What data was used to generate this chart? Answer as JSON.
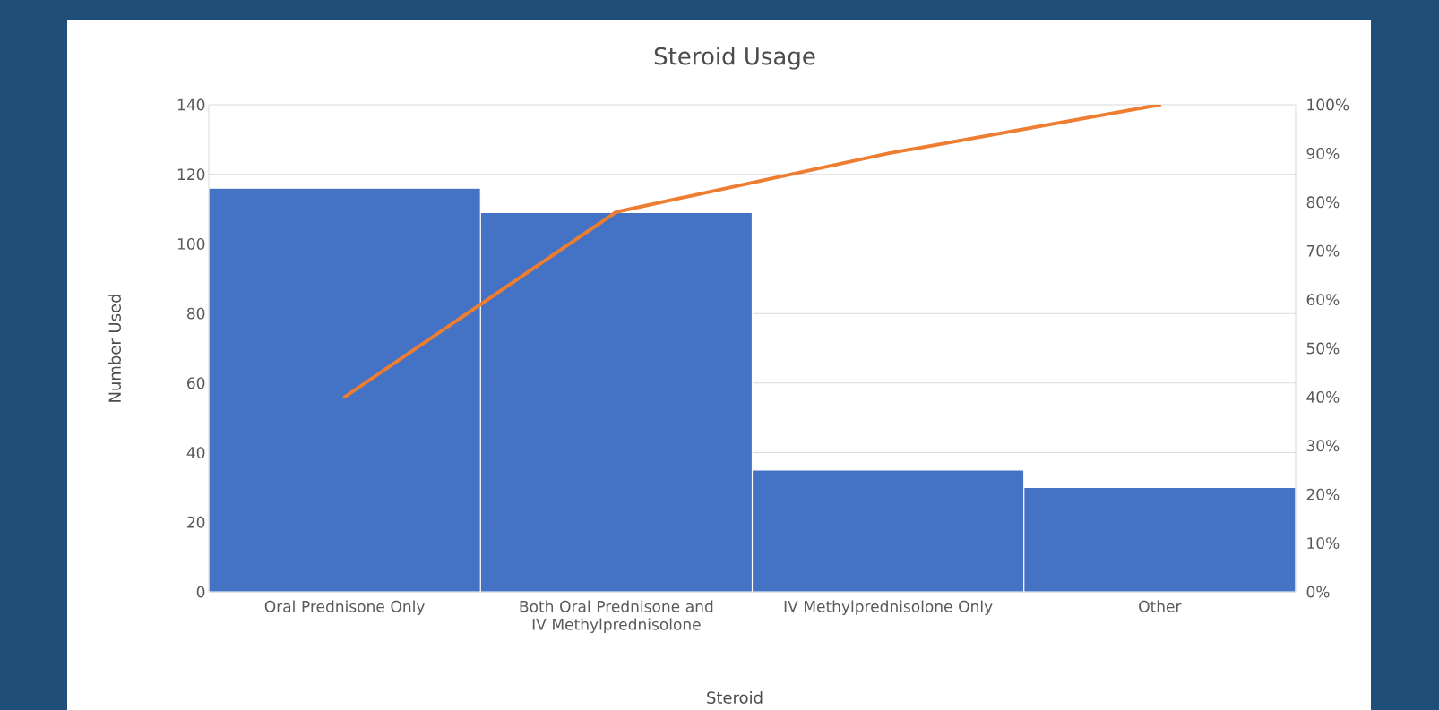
{
  "chart_data": {
    "type": "bar",
    "title": "Steroid Usage",
    "xlabel": "Steroid",
    "ylabel": "Number Used",
    "categories": [
      "Oral Prednisone Only",
      "Both Oral Prednisone and IV Methylprednisolone",
      "IV Methylprednisolone Only",
      "Other"
    ],
    "series": [
      {
        "color": "#4472c4",
        "values": [
          116,
          109,
          35,
          30
        ]
      },
      {
        "type": "line",
        "axis": "y2",
        "color": "#ed7d31",
        "values": [
          40,
          78,
          90,
          100
        ]
      }
    ],
    "ylim": [
      0,
      140
    ],
    "yticks": [
      0,
      20,
      40,
      60,
      80,
      100,
      120,
      140
    ],
    "y2lim": [
      0,
      100
    ],
    "y2ticks": [
      {
        "value": 0,
        "label": "0%"
      },
      {
        "value": 10,
        "label": "10%"
      },
      {
        "value": 20,
        "label": "20%"
      },
      {
        "value": 30,
        "label": "30%"
      },
      {
        "value": 40,
        "label": "40%"
      },
      {
        "value": 50,
        "label": "50%"
      },
      {
        "value": 60,
        "label": "60%"
      },
      {
        "value": 70,
        "label": "70%"
      },
      {
        "value": 80,
        "label": "80%"
      },
      {
        "value": 90,
        "label": "90%"
      },
      {
        "value": 100,
        "label": "100%"
      }
    ],
    "grid": "y"
  }
}
